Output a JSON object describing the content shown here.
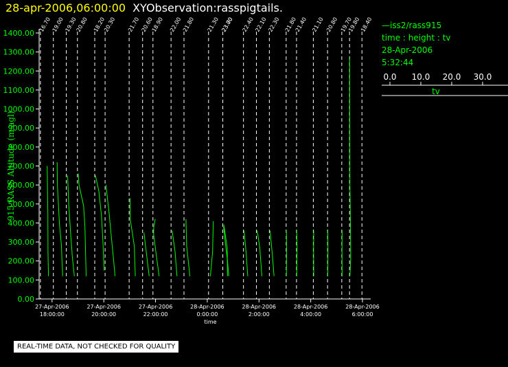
{
  "header": {
    "date_label": "28-apr-2006,06:00:00",
    "obs_label": "XYObservation:rasspigtails."
  },
  "legend": {
    "series_line": "—iss2/rass915",
    "axes_line": "time : height : tv",
    "date": "28-Apr-2006",
    "time": "5:32:44",
    "scale_ticks": [
      "0.0",
      "10.0",
      "20.0",
      "30.0"
    ],
    "scale_label": "tv"
  },
  "footer": {
    "text": "REAL-TIME DATA, NOT CHECKED FOR QUALITY"
  },
  "colors": {
    "background": "#000000",
    "series": "#00ff00",
    "axis": "#ffffff",
    "title_date": "#ffff00"
  },
  "chart_data": {
    "type": "line",
    "title": "",
    "ylabel": "915 RASS Altitude (m agl)",
    "xlabel": "time",
    "ylim": [
      0,
      1400
    ],
    "y_ticks": [
      "0.00",
      "100.00",
      "200.00",
      "300.00",
      "400.00",
      "500.00",
      "600.00",
      "700.00",
      "800.00",
      "900.00",
      "1000.00",
      "1100.00",
      "1200.00",
      "1300.00",
      "1400.00"
    ],
    "x_range_hours": [
      17.5,
      30.0
    ],
    "x_ticks": [
      {
        "h": 18,
        "date": "27-Apr-2006",
        "time": "18:00:00"
      },
      {
        "h": 20,
        "date": "27-Apr-2006",
        "time": "20:00:00"
      },
      {
        "h": 22,
        "date": "27-Apr-2006",
        "time": "22:00:00"
      },
      {
        "h": 24,
        "date": "28-Apr-2006",
        "time": "0:00:00"
      },
      {
        "h": 26,
        "date": "28-Apr-2006",
        "time": "2:00:00"
      },
      {
        "h": 28,
        "date": "28-Apr-2006",
        "time": "4:00:00"
      },
      {
        "h": 30,
        "date": "28-Apr-2006",
        "time": "6:00:00"
      }
    ],
    "tv_scale_hours_per_degree": 0.052,
    "profiles": [
      {
        "h": 17.55,
        "label": "16.70",
        "points": [
          [
            6.0,
            120
          ],
          [
            5.6,
            250
          ],
          [
            5.5,
            450
          ],
          [
            5.2,
            600
          ],
          [
            5.0,
            700
          ]
        ]
      },
      {
        "h": 18.05,
        "label": "19.00",
        "points": [
          [
            6.9,
            120
          ],
          [
            6.0,
            280
          ],
          [
            4.5,
            400
          ],
          [
            3.0,
            600
          ],
          [
            2.8,
            720
          ]
        ]
      },
      {
        "h": 18.55,
        "label": "19.30",
        "points": [
          [
            6.0,
            120
          ],
          [
            4.5,
            220
          ],
          [
            3.2,
            350
          ],
          [
            1.8,
            500
          ],
          [
            1.0,
            650
          ]
        ]
      },
      {
        "h": 18.98,
        "label": "20.80",
        "points": [
          [
            6.5,
            120
          ],
          [
            5.6,
            380
          ],
          [
            4.6,
            490
          ],
          [
            1.2,
            600
          ],
          [
            0.7,
            660
          ]
        ]
      },
      {
        "h": 19.65,
        "label": "18.20",
        "points": [
          [
            7.0,
            150
          ],
          [
            6.0,
            310
          ],
          [
            5.0,
            440
          ],
          [
            3.0,
            570
          ],
          [
            0.5,
            650
          ]
        ]
      },
      {
        "h": 20.05,
        "label": "20.30",
        "points": [
          [
            7.4,
            120
          ],
          [
            6.0,
            230
          ],
          [
            4.2,
            360
          ],
          [
            3.0,
            450
          ],
          [
            0.6,
            600
          ]
        ]
      },
      {
        "h": 20.98,
        "label": "21.70",
        "points": [
          [
            4.6,
            120
          ],
          [
            3.8,
            280
          ],
          [
            0.8,
            420
          ],
          [
            0.7,
            530
          ]
        ]
      },
      {
        "h": 21.5,
        "label": "20.60",
        "points": [
          [
            4.9,
            120
          ],
          [
            3.5,
            200
          ],
          [
            1.0,
            350
          ]
        ]
      },
      {
        "h": 21.9,
        "label": "18.90",
        "points": [
          [
            4.6,
            120
          ],
          [
            2.5,
            230
          ],
          [
            0.5,
            340
          ],
          [
            0.6,
            380
          ],
          [
            1.7,
            420
          ]
        ]
      },
      {
        "h": 22.6,
        "label": "22.00",
        "points": [
          [
            4.4,
            120
          ],
          [
            3.0,
            250
          ],
          [
            0.8,
            360
          ]
        ]
      },
      {
        "h": 23.1,
        "label": "21.80",
        "points": [
          [
            4.4,
            120
          ],
          [
            2.0,
            280
          ],
          [
            1.5,
            420
          ]
        ]
      },
      {
        "h": 24.05,
        "label": "21.30",
        "points": [
          [
            1.4,
            120
          ],
          [
            3.0,
            250
          ],
          [
            3.5,
            410
          ]
        ]
      },
      {
        "h": 24.6,
        "label": "23.70",
        "points": [
          [
            3.5,
            120
          ],
          [
            3.3,
            270
          ],
          [
            0.8,
            390
          ]
        ]
      },
      {
        "h": 24.6,
        "label": "23.00",
        "points": [
          [
            4.5,
            120
          ],
          [
            3.5,
            200
          ],
          [
            1.8,
            300
          ],
          [
            0.6,
            380
          ]
        ]
      },
      {
        "h": 25.4,
        "label": "22.40",
        "points": [
          [
            3.2,
            120
          ],
          [
            2.0,
            240
          ],
          [
            0.4,
            360
          ]
        ]
      },
      {
        "h": 25.9,
        "label": "22.10",
        "points": [
          [
            4.1,
            120
          ],
          [
            2.5,
            270
          ],
          [
            0.6,
            360
          ]
        ]
      },
      {
        "h": 26.4,
        "label": "22.30",
        "points": [
          [
            3.5,
            120
          ],
          [
            2.0,
            250
          ],
          [
            0.5,
            360
          ]
        ]
      },
      {
        "h": 27.05,
        "label": "21.80",
        "points": [
          [
            0.2,
            120
          ],
          [
            0.3,
            260
          ],
          [
            0.2,
            360
          ]
        ]
      },
      {
        "h": 27.45,
        "label": "21.40",
        "points": [
          [
            0.2,
            120
          ],
          [
            0.4,
            270
          ],
          [
            0.2,
            360
          ]
        ]
      },
      {
        "h": 28.1,
        "label": "21.10",
        "points": [
          [
            0.3,
            120
          ],
          [
            0.2,
            270
          ],
          [
            0.3,
            360
          ]
        ]
      },
      {
        "h": 28.65,
        "label": "20.80",
        "points": [
          [
            0.2,
            120
          ],
          [
            0.3,
            270
          ],
          [
            0.2,
            360
          ]
        ]
      },
      {
        "h": 29.2,
        "label": "19.70",
        "points": [
          [
            0.3,
            120
          ],
          [
            0.2,
            250
          ],
          [
            0.3,
            360
          ]
        ]
      },
      {
        "h": 29.5,
        "label": "19.80",
        "points": [
          [
            0.3,
            120
          ],
          [
            0.9,
            210
          ],
          [
            0.7,
            400
          ],
          [
            0.3,
            600
          ],
          [
            0.1,
            1270
          ]
        ]
      },
      {
        "h": 29.98,
        "label": "18.40",
        "points": []
      }
    ]
  }
}
